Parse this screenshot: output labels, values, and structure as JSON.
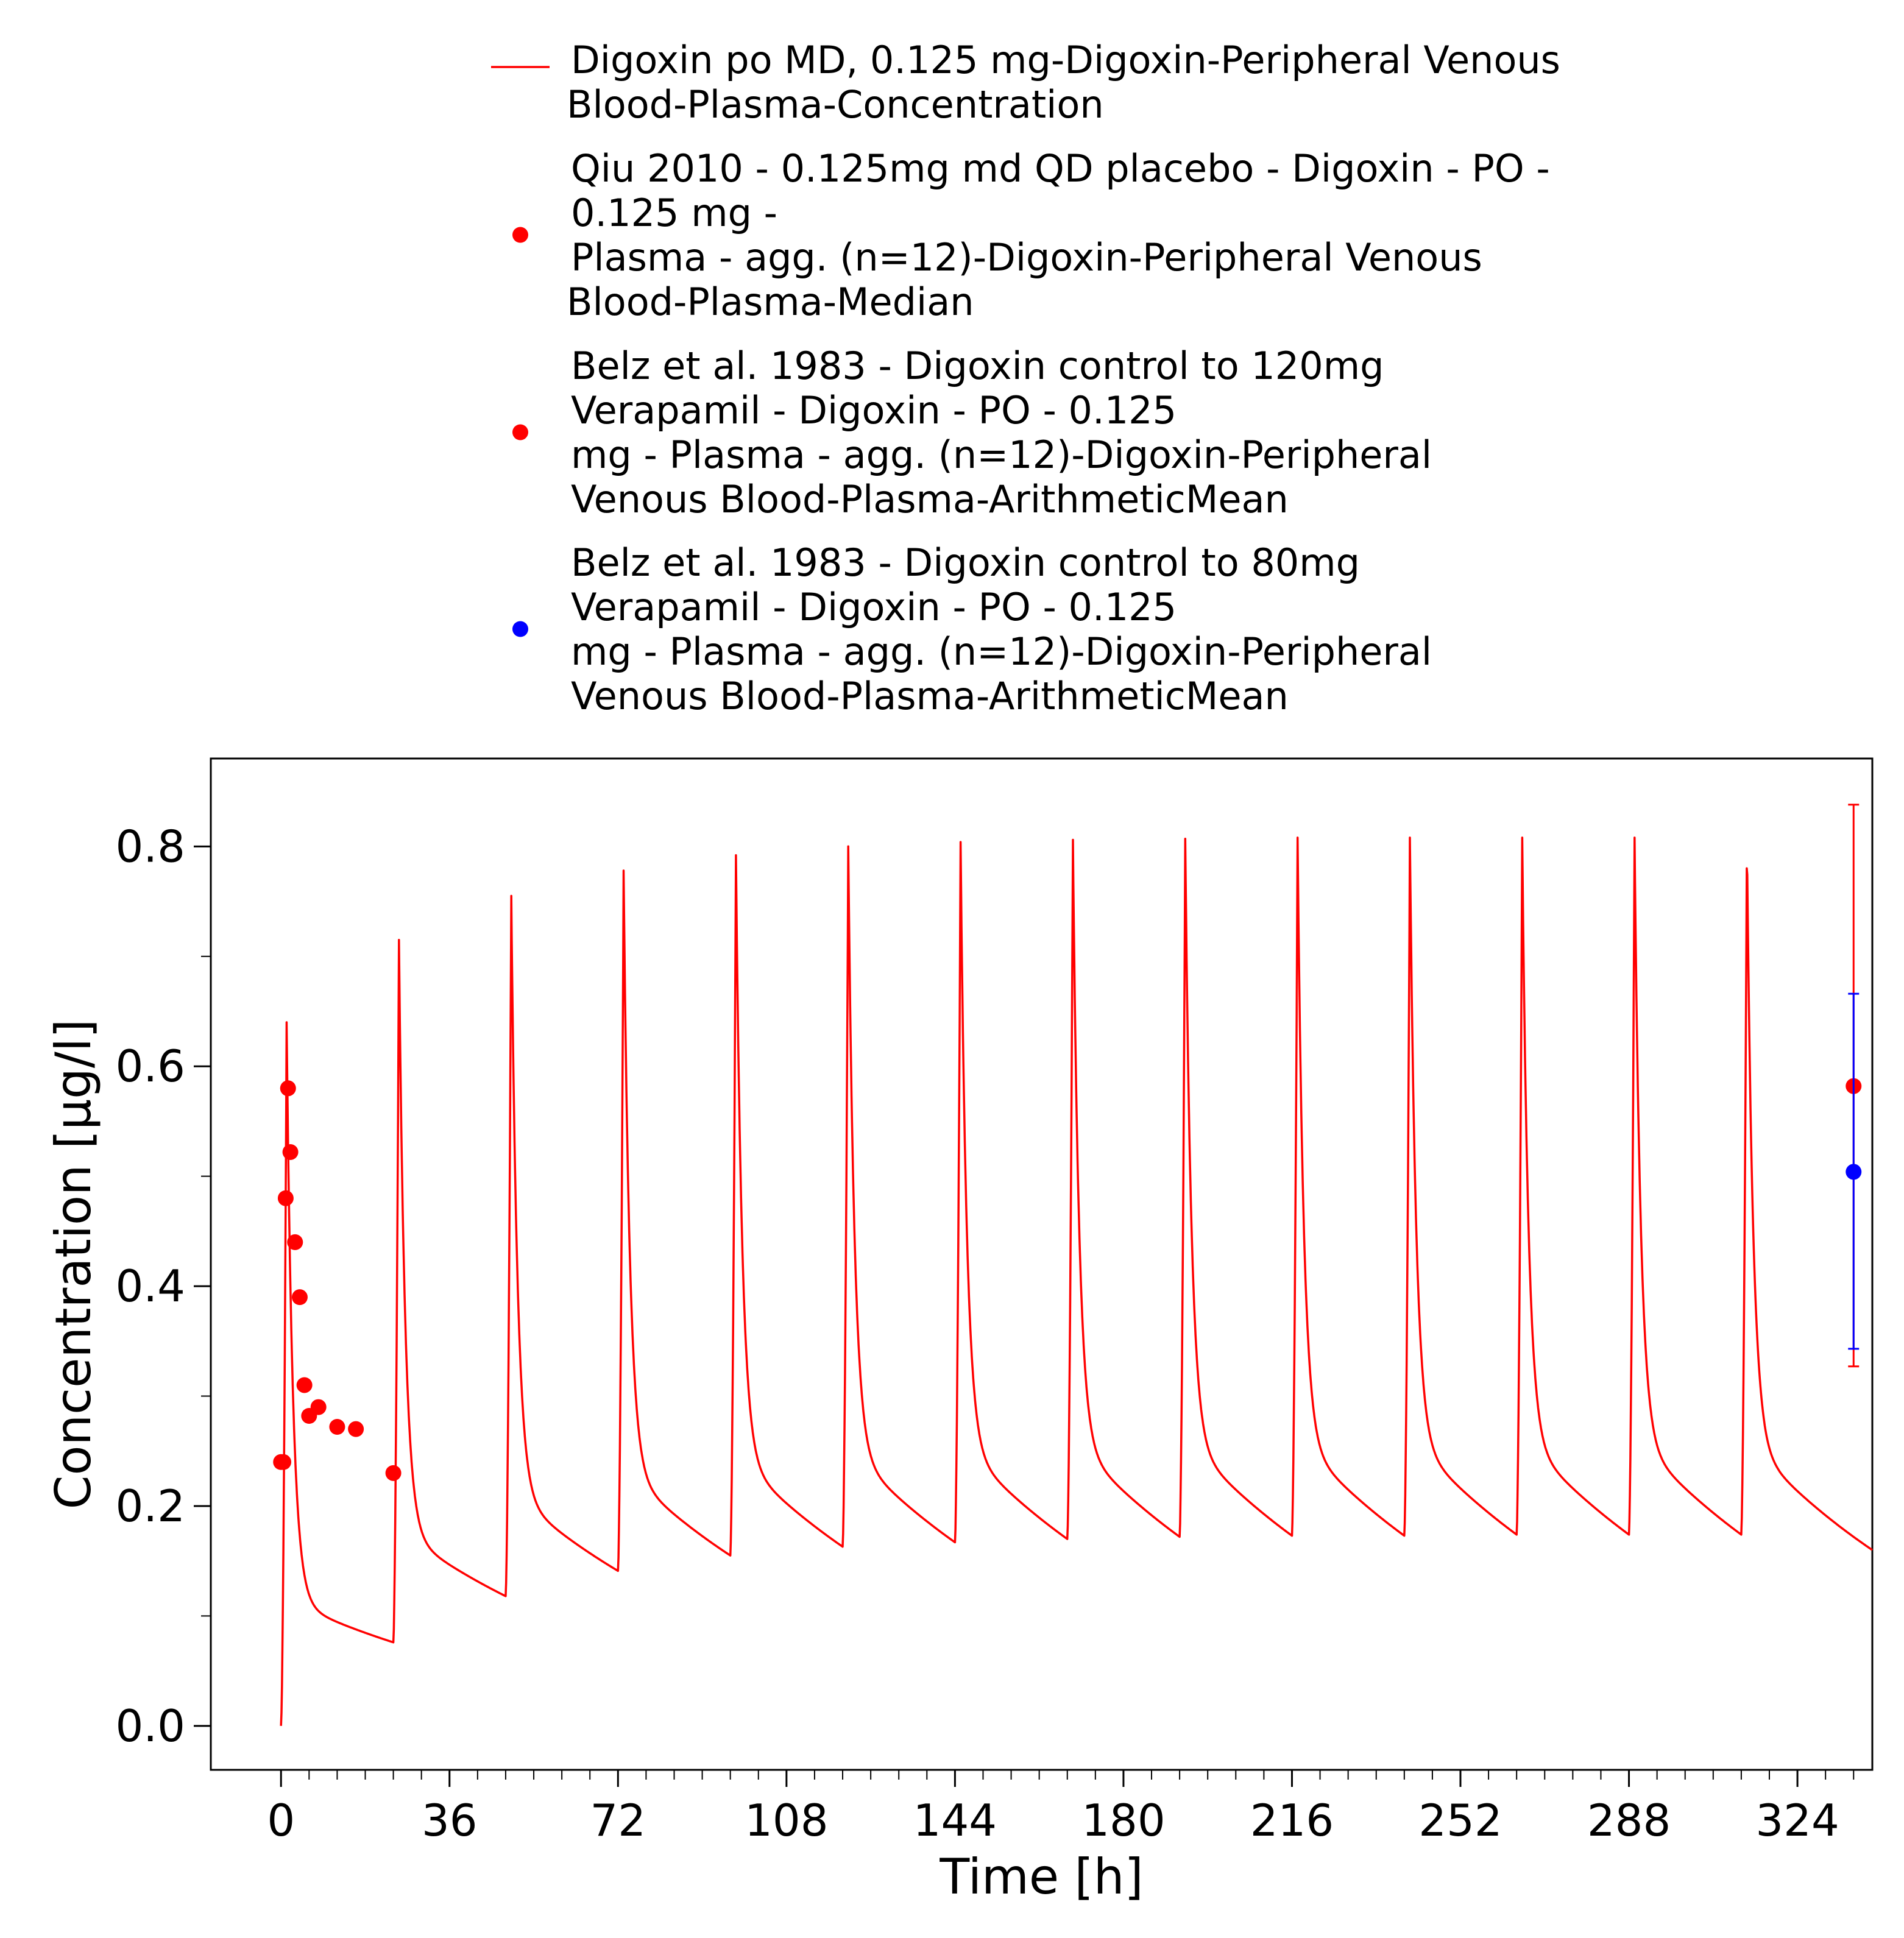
{
  "chart_data": {
    "type": "line",
    "title": "",
    "xlabel": "Time [h]",
    "ylabel": "Concentration [µg/l]",
    "xlim": [
      -15,
      340
    ],
    "ylim": [
      -0.04,
      0.88
    ],
    "x_ticks": [
      0,
      36,
      72,
      108,
      144,
      180,
      216,
      252,
      288,
      324
    ],
    "x_tick_labels": [
      "0",
      "36",
      "72",
      "108",
      "144",
      "180",
      "216",
      "252",
      "288",
      "324"
    ],
    "y_ticks": [
      0.0,
      0.2,
      0.4,
      0.6,
      0.8
    ],
    "y_tick_labels": [
      "0.0",
      "0.2",
      "0.4",
      "0.6",
      "0.8"
    ],
    "x_minor_tick_step": 6,
    "grid": false,
    "legend_position": "top-center, above plot",
    "series": [
      {
        "name": "Digoxin po MD, 0.125 mg-Digoxin-Peripheral Venous Blood-Plasma-Concentration",
        "kind": "line",
        "color": "#ff0000",
        "dose_interval_h": 24,
        "n_doses": 14,
        "end_time_h": 340,
        "peak_values": [
          0.64,
          0.715,
          0.755,
          0.778,
          0.792,
          0.8,
          0.804,
          0.806,
          0.807,
          0.808,
          0.808,
          0.808,
          0.808,
          0.808
        ],
        "trough_values": [
          0.076,
          0.118,
          0.141,
          0.155,
          0.163,
          0.167,
          0.17,
          0.172,
          0.173,
          0.173,
          0.174,
          0.174,
          0.174,
          0.174
        ],
        "final_value": 0.16
      },
      {
        "name": "Qiu 2010 - 0.125mg md QD placebo - Digoxin - PO - 0.125 mg - Plasma - agg. (n=12)-Digoxin-Peripheral Venous Blood-Plasma-Median",
        "kind": "scatter",
        "color": "#ff0000",
        "points": [
          {
            "x": 0,
            "y": 0.24
          },
          {
            "x": 0.5,
            "y": 0.24
          },
          {
            "x": 1,
            "y": 0.48
          },
          {
            "x": 1.5,
            "y": 0.58
          },
          {
            "x": 2,
            "y": 0.522
          },
          {
            "x": 3,
            "y": 0.44
          },
          {
            "x": 4,
            "y": 0.39
          },
          {
            "x": 5,
            "y": 0.31
          },
          {
            "x": 6,
            "y": 0.282
          },
          {
            "x": 8,
            "y": 0.29
          },
          {
            "x": 12,
            "y": 0.272
          },
          {
            "x": 16,
            "y": 0.27
          },
          {
            "x": 24,
            "y": 0.23
          }
        ]
      },
      {
        "name": "Belz et al. 1983 - Digoxin control to 120mg Verapamil - Digoxin - PO - 0.125 mg - Plasma - agg. (n=12)-Digoxin-Peripheral Venous Blood-Plasma-ArithmeticMean",
        "kind": "scatter",
        "color": "#ff0000",
        "points": [
          {
            "x": 336,
            "y": 0.582,
            "err_low": 0.327,
            "err_high": 0.838
          }
        ]
      },
      {
        "name": "Belz et al. 1983 - Digoxin control to 80mg Verapamil - Digoxin - PO - 0.125 mg - Plasma - agg. (n=12)-Digoxin-Peripheral Venous Blood-Plasma-ArithmeticMean",
        "kind": "scatter",
        "color": "#0000ff",
        "points": [
          {
            "x": 336,
            "y": 0.504,
            "err_low": 0.343,
            "err_high": 0.666
          }
        ]
      }
    ],
    "legend": {
      "entries": [
        {
          "marker": "line",
          "color": "#ff0000",
          "lines": [
            "Digoxin po MD, 0.125 mg-Digoxin-Peripheral Venous",
            "Blood-Plasma-Concentration"
          ]
        },
        {
          "marker": "dot",
          "color": "#ff0000",
          "lines": [
            "Qiu 2010 - 0.125mg md QD placebo - Digoxin - PO -",
            "0.125 mg -",
            "Plasma - agg. (n=12)-Digoxin-Peripheral Venous",
            "Blood-Plasma-Median"
          ]
        },
        {
          "marker": "dot",
          "color": "#ff0000",
          "lines": [
            "Belz et al. 1983 - Digoxin control to 120mg",
            "Verapamil - Digoxin - PO - 0.125",
            "mg - Plasma - agg. (n=12)-Digoxin-Peripheral",
            "Venous Blood-Plasma-ArithmeticMean"
          ]
        },
        {
          "marker": "dot",
          "color": "#0000ff",
          "lines": [
            "Belz et al. 1983 - Digoxin control to 80mg",
            "Verapamil - Digoxin - PO - 0.125",
            "mg - Plasma - agg. (n=12)-Digoxin-Peripheral",
            "Venous Blood-Plasma-ArithmeticMean"
          ]
        }
      ]
    }
  }
}
